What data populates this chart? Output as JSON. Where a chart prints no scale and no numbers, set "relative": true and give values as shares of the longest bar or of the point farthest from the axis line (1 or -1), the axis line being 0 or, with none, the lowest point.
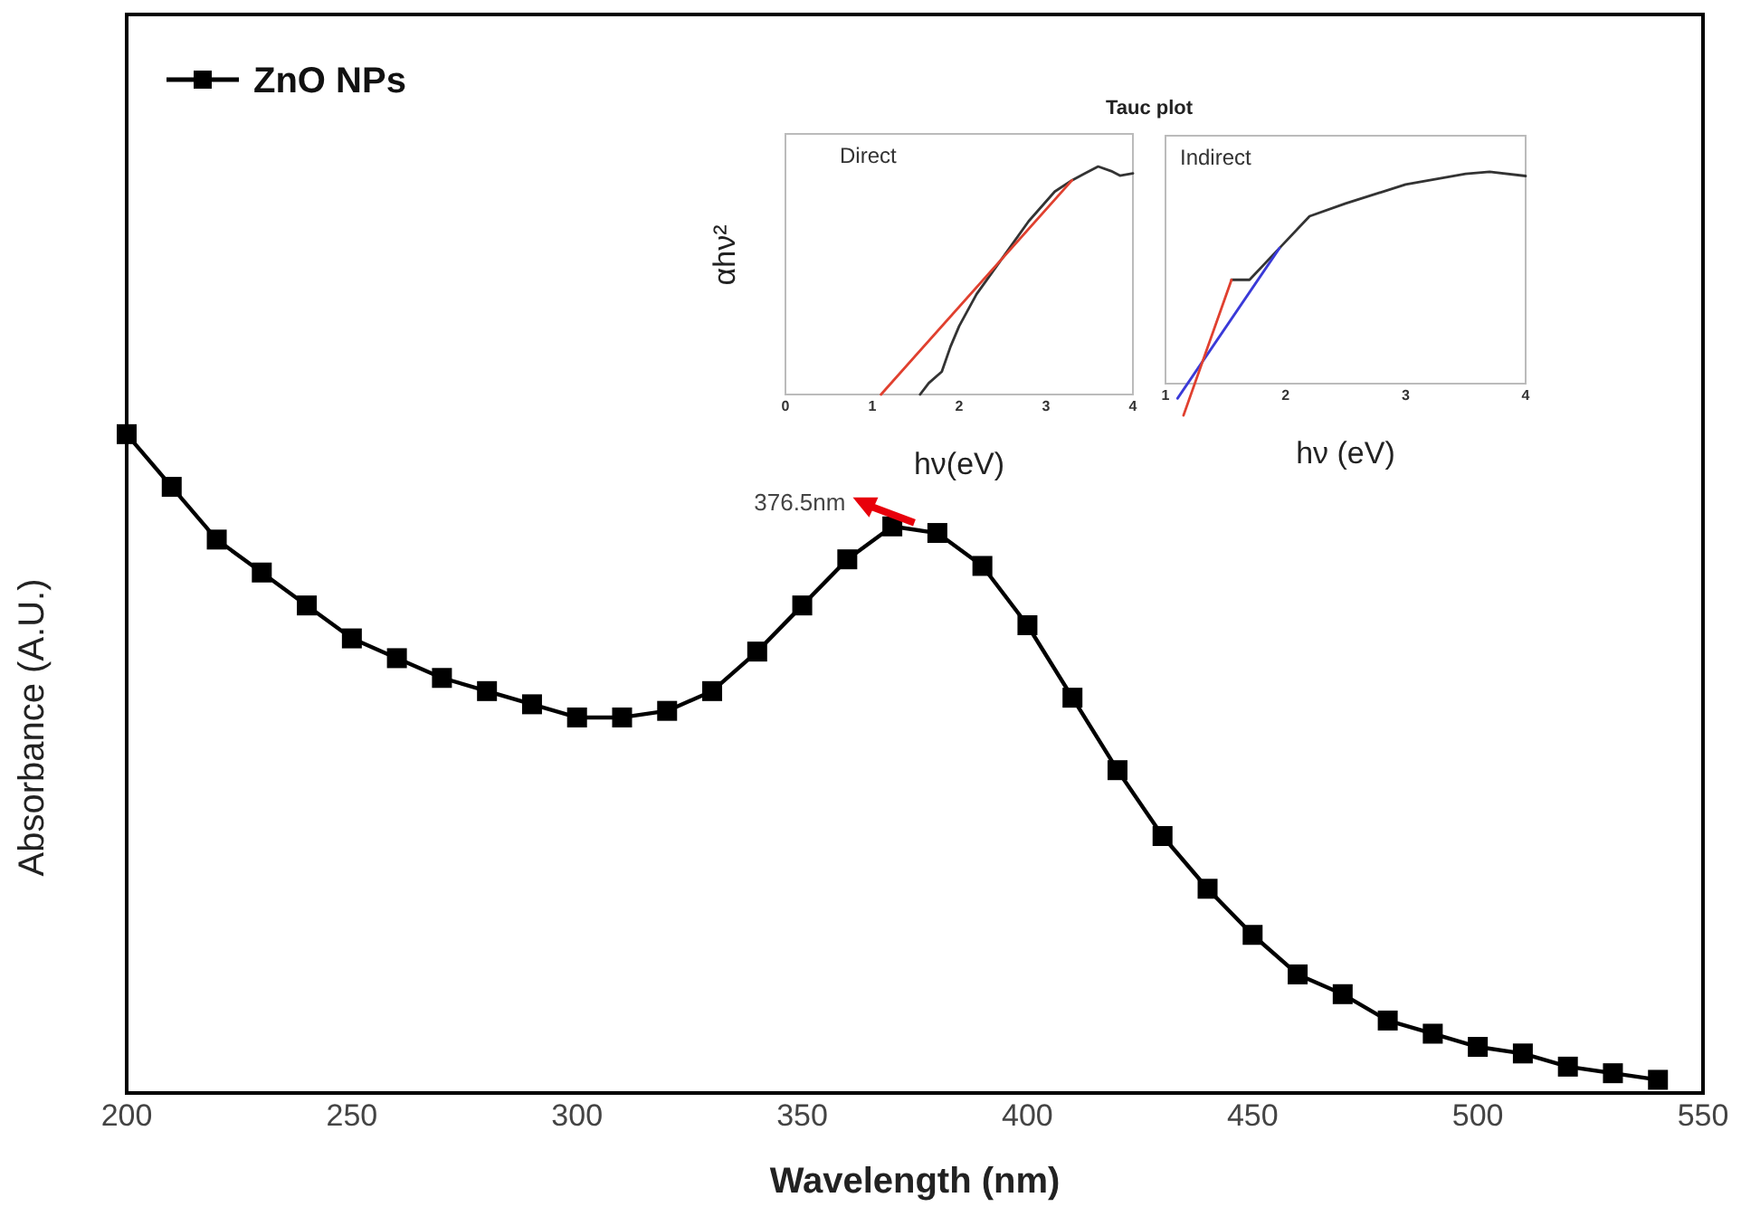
{
  "chart_data": [
    {
      "type": "line",
      "xlabel": "Wavelength  (nm)",
      "ylabel": "Absorbance (A.U.)",
      "relative": true,
      "xlim": [
        200,
        550
      ],
      "xticks": [
        200,
        250,
        300,
        350,
        400,
        450,
        500,
        550
      ],
      "marker": "square",
      "legend": "top left",
      "grid": false,
      "x": [
        200,
        210,
        220,
        230,
        240,
        250,
        260,
        270,
        280,
        290,
        300,
        310,
        320,
        330,
        340,
        350,
        360,
        370,
        380,
        390,
        400,
        410,
        420,
        430,
        440,
        450,
        460,
        470,
        480,
        490,
        500,
        510,
        520,
        530,
        540
      ],
      "series": [
        {
          "name": "ZnO NPs",
          "color": "#000000",
          "values": [
            1.0,
            0.92,
            0.84,
            0.79,
            0.74,
            0.69,
            0.66,
            0.63,
            0.61,
            0.59,
            0.57,
            0.57,
            0.58,
            0.61,
            0.67,
            0.74,
            0.81,
            0.86,
            0.85,
            0.8,
            0.71,
            0.6,
            0.49,
            0.39,
            0.31,
            0.24,
            0.18,
            0.15,
            0.11,
            0.09,
            0.07,
            0.06,
            0.04,
            0.03,
            0.02
          ]
        }
      ],
      "annotations": [
        {
          "text": "376.5nm",
          "x": 376.5,
          "y": 0.86
        }
      ]
    },
    {
      "type": "line",
      "title": "Tauc plot",
      "xlabel": "hν(eV)",
      "ylabel": "αhν²",
      "relative": true,
      "xlim": [
        0,
        4
      ],
      "xticks": [
        0,
        1,
        2,
        3,
        4
      ],
      "marker": "none",
      "series": [
        {
          "color": "#333333",
          "x": [
            1.55,
            1.65,
            1.8,
            1.9,
            2.0,
            2.2,
            2.5,
            2.8,
            3.1,
            3.3,
            3.45,
            3.6,
            3.75,
            3.85,
            4.0
          ],
          "values": [
            0,
            0.05,
            0.1,
            0.21,
            0.3,
            0.44,
            0.6,
            0.76,
            0.89,
            0.94,
            0.97,
            1.0,
            0.98,
            0.96,
            0.97
          ]
        },
        {
          "color": "#e0402f",
          "x": [
            1.1,
            3.3
          ],
          "values": [
            0,
            0.94
          ]
        }
      ],
      "annotations": [
        "Direct"
      ]
    },
    {
      "type": "line",
      "xlabel": "hν (eV)",
      "relative": true,
      "xlim": [
        1,
        4
      ],
      "xticks": [
        1,
        2,
        3,
        4
      ],
      "marker": "none",
      "series": [
        {
          "color": "#333333",
          "x": [
            1.55,
            1.7,
            1.95,
            2.2,
            2.5,
            3.0,
            3.5,
            3.7,
            4.0
          ],
          "values": [
            0.49,
            0.49,
            0.64,
            0.79,
            0.85,
            0.94,
            0.99,
            1.0,
            0.98
          ]
        },
        {
          "color": "#3a3ad8",
          "x": [
            1.1,
            1.95
          ],
          "values": [
            -0.07,
            0.64
          ]
        },
        {
          "color": "#e0402f",
          "x": [
            1.15,
            1.55
          ],
          "values": [
            -0.15,
            0.49
          ]
        }
      ],
      "annotations": [
        "Indirect"
      ]
    }
  ]
}
